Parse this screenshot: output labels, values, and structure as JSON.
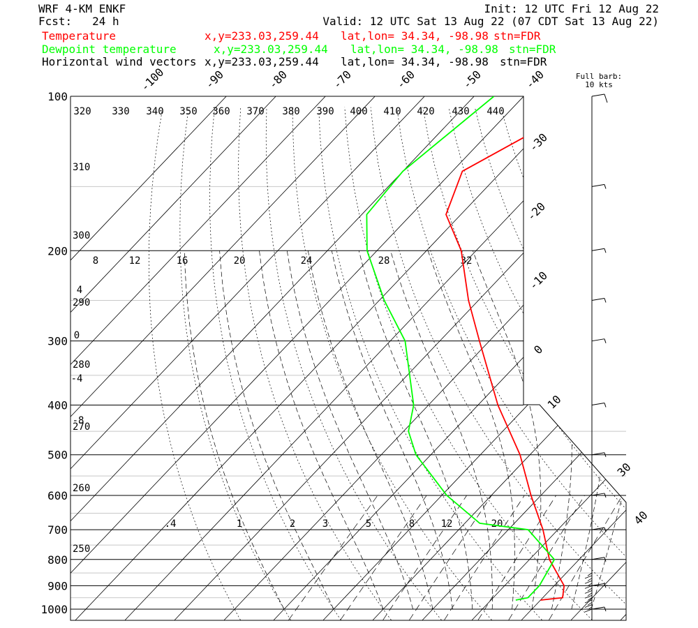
{
  "header": {
    "model": "WRF 4-KM ENKF",
    "fcst": "Fcst:   24 h",
    "init": "Init: 12 UTC Fri 12 Aug 22",
    "valid": "Valid: 12 UTC Sat 13 Aug 22 (07 CDT Sat 13 Aug 22)",
    "lines": [
      {
        "label": "Temperature",
        "pos": "x,y=233.03,259.44",
        "latlon": "lat,lon= 34.34, -98.98",
        "stn": "stn=FDR",
        "color": "#ff0000"
      },
      {
        "label": "Dewpoint temperature",
        "pos": "x,y=233.03,259.44",
        "latlon": "lat,lon= 34.34, -98.98",
        "stn": "stn=FDR",
        "color": "#00ff00"
      },
      {
        "label": "Horizontal wind vectors",
        "pos": "x,y=233.03,259.44",
        "latlon": "lat,lon= 34.34, -98.98",
        "stn": "stn=FDR",
        "color": "#000000"
      }
    ]
  },
  "barb_legend": {
    "line1": "Full barb:",
    "line2": "10 kts"
  },
  "chart_data": {
    "type": "skew-t",
    "pressure_levels": [
      100,
      200,
      300,
      400,
      500,
      600,
      700,
      800,
      900,
      1000
    ],
    "isotherm_labels": [
      "-100",
      "-90",
      "-80",
      "-70",
      "-60",
      "-50",
      "-40",
      "-30",
      "-20",
      "-10",
      "0",
      "10",
      "30",
      "40"
    ],
    "isotherm_values": [
      -100,
      -90,
      -80,
      -70,
      -60,
      -50,
      -40,
      -30,
      -20,
      -10,
      0,
      10,
      30,
      40
    ],
    "theta_e_labels": [
      "320",
      "330",
      "340",
      "350",
      "360",
      "370",
      "380",
      "390",
      "400",
      "410",
      "420",
      "430",
      "440"
    ],
    "theta_labels": [
      "310",
      "300",
      "290",
      "280",
      "270",
      "260",
      "250"
    ],
    "saturation_theta_labels": [
      "8",
      "12",
      "16",
      "20",
      "24",
      "28",
      "32",
      "4",
      "0",
      "-4",
      "-8"
    ],
    "mixing_ratio_labels": [
      ".4",
      "1",
      "2",
      "3",
      "5",
      "8",
      "12",
      "20"
    ],
    "mixing_ratio_values": [
      0.4,
      1,
      2,
      3,
      5,
      8,
      12,
      20
    ],
    "temperature": [
      {
        "p": 100,
        "t": -68
      },
      {
        "p": 120,
        "t": -72
      },
      {
        "p": 140,
        "t": -78
      },
      {
        "p": 170,
        "t": -73
      },
      {
        "p": 200,
        "t": -63
      },
      {
        "p": 250,
        "t": -52
      },
      {
        "p": 300,
        "t": -42
      },
      {
        "p": 400,
        "t": -26
      },
      {
        "p": 500,
        "t": -12
      },
      {
        "p": 600,
        "t": -2
      },
      {
        "p": 700,
        "t": 7
      },
      {
        "p": 800,
        "t": 14
      },
      {
        "p": 900,
        "t": 22
      },
      {
        "p": 950,
        "t": 24
      },
      {
        "p": 960,
        "t": 20
      }
    ],
    "dewpoint": [
      {
        "p": 100,
        "t": -86
      },
      {
        "p": 140,
        "t": -90
      },
      {
        "p": 170,
        "t": -89
      },
      {
        "p": 200,
        "t": -82
      },
      {
        "p": 250,
        "t": -69
      },
      {
        "p": 300,
        "t": -57
      },
      {
        "p": 400,
        "t": -43
      },
      {
        "p": 450,
        "t": -39
      },
      {
        "p": 500,
        "t": -33
      },
      {
        "p": 600,
        "t": -19
      },
      {
        "p": 680,
        "t": -7
      },
      {
        "p": 700,
        "t": 4
      },
      {
        "p": 800,
        "t": 15
      },
      {
        "p": 900,
        "t": 17
      },
      {
        "p": 950,
        "t": 17
      },
      {
        "p": 960,
        "t": 15
      }
    ],
    "wind_speed_kts": [
      {
        "p": 100,
        "s": 10
      },
      {
        "p": 150,
        "s": 5
      },
      {
        "p": 200,
        "s": 5
      },
      {
        "p": 250,
        "s": 5
      },
      {
        "p": 300,
        "s": 5
      },
      {
        "p": 400,
        "s": 5
      },
      {
        "p": 500,
        "s": 5
      },
      {
        "p": 600,
        "s": 5
      },
      {
        "p": 700,
        "s": 5
      },
      {
        "p": 800,
        "s": 5
      },
      {
        "p": 900,
        "s": 5
      },
      {
        "p": 1000,
        "s": 5
      }
    ],
    "colors": {
      "temperature": "#ff0000",
      "dewpoint": "#00ff00",
      "axes": "#000000",
      "grid": "#000000",
      "bands": "#c8c8c8"
    }
  }
}
